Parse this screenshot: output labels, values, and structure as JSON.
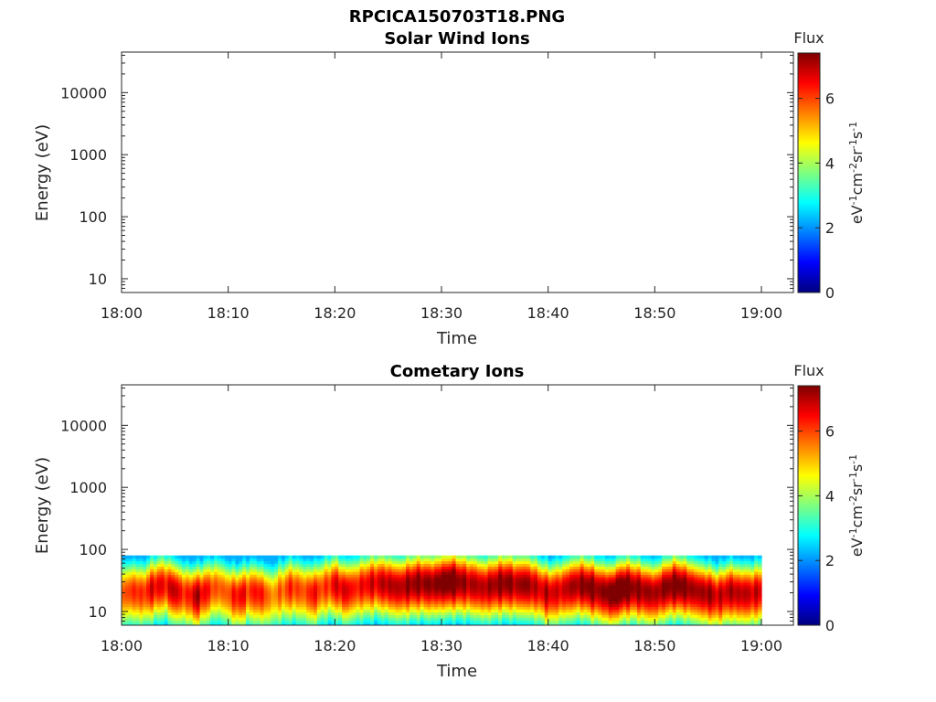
{
  "figure": {
    "title": "RPCICA150703T18.PNG"
  },
  "colormap": {
    "name": "jet",
    "stops": [
      "#00007f",
      "#0000ff",
      "#007fff",
      "#00ffff",
      "#7fff7f",
      "#ffff00",
      "#ff7f00",
      "#ff0000",
      "#7f0000"
    ]
  },
  "chart_data": [
    {
      "type": "heatmap",
      "title": "Solar Wind Ions",
      "xlabel": "Time",
      "ylabel": "Energy (eV)",
      "x_ticks": [
        "18:00",
        "18:10",
        "18:20",
        "18:30",
        "18:40",
        "18:50",
        "19:00"
      ],
      "x_range_min": [
        0,
        63
      ],
      "y_scale": "log",
      "y_ticks": [
        "10",
        "100",
        "1000",
        "10000"
      ],
      "y_range": [
        6,
        45000
      ],
      "colorbar": {
        "label": "Flux",
        "units_label": "eV-1cm-2sr-1s-1",
        "ticks": [
          "0",
          "2",
          "4",
          "6"
        ],
        "range": [
          0,
          7.4
        ]
      },
      "values": "none"
    },
    {
      "type": "heatmap",
      "title": "Cometary Ions",
      "xlabel": "Time",
      "ylabel": "Energy (eV)",
      "x_ticks": [
        "18:00",
        "18:10",
        "18:20",
        "18:30",
        "18:40",
        "18:50",
        "19:00"
      ],
      "x_range_min": [
        0,
        63
      ],
      "y_scale": "log",
      "y_ticks": [
        "10",
        "100",
        "1000",
        "10000"
      ],
      "y_range": [
        6,
        45000
      ],
      "colorbar": {
        "label": "Flux",
        "units_label": "eV-1cm-2sr-1s-1",
        "ticks": [
          "0",
          "2",
          "4",
          "6"
        ],
        "range": [
          0,
          7.4
        ]
      },
      "data_extent": {
        "time_min": [
          0,
          60
        ],
        "energy_ev": [
          6,
          80
        ]
      },
      "flux_profile": {
        "time_min": [
          0,
          1,
          2,
          3,
          4,
          5,
          6,
          7,
          8,
          9,
          10,
          11,
          12,
          13,
          14,
          15,
          16,
          17,
          18,
          19,
          20,
          21,
          22,
          23,
          24,
          25,
          26,
          27,
          28,
          29,
          30,
          31,
          32,
          33,
          34,
          35,
          36,
          37,
          38,
          39,
          40,
          41,
          42,
          43,
          44,
          45,
          46,
          47,
          48,
          49,
          50,
          51,
          52,
          53,
          54,
          55,
          56,
          57,
          58,
          59,
          60
        ],
        "peak_flux": [
          4.8,
          5.5,
          5.3,
          6.0,
          5.6,
          6.3,
          5.2,
          6.4,
          5.6,
          5.0,
          5.1,
          5.9,
          5.3,
          5.8,
          4.6,
          5.0,
          5.5,
          5.0,
          5.8,
          5.1,
          5.9,
          6.0,
          5.5,
          5.9,
          6.0,
          6.3,
          6.2,
          6.5,
          6.6,
          6.5,
          6.8,
          7.1,
          6.4,
          6.3,
          6.2,
          6.5,
          6.7,
          6.3,
          6.6,
          6.0,
          6.2,
          5.9,
          6.3,
          6.5,
          6.8,
          6.4,
          7.0,
          7.2,
          6.6,
          6.5,
          6.3,
          6.6,
          6.9,
          6.6,
          6.3,
          6.5,
          6.0,
          6.3,
          6.2,
          6.1,
          6.0
        ],
        "peak_energy_ev": [
          20,
          22,
          20,
          25,
          28,
          22,
          20,
          18,
          22,
          25,
          20,
          18,
          22,
          20,
          18,
          22,
          25,
          22,
          20,
          25,
          28,
          22,
          25,
          28,
          30,
          28,
          25,
          28,
          30,
          28,
          30,
          32,
          30,
          28,
          25,
          28,
          30,
          28,
          28,
          25,
          20,
          22,
          25,
          28,
          25,
          22,
          20,
          25,
          25,
          22,
          20,
          25,
          28,
          25,
          22,
          20,
          18,
          22,
          20,
          20,
          22
        ]
      }
    }
  ]
}
